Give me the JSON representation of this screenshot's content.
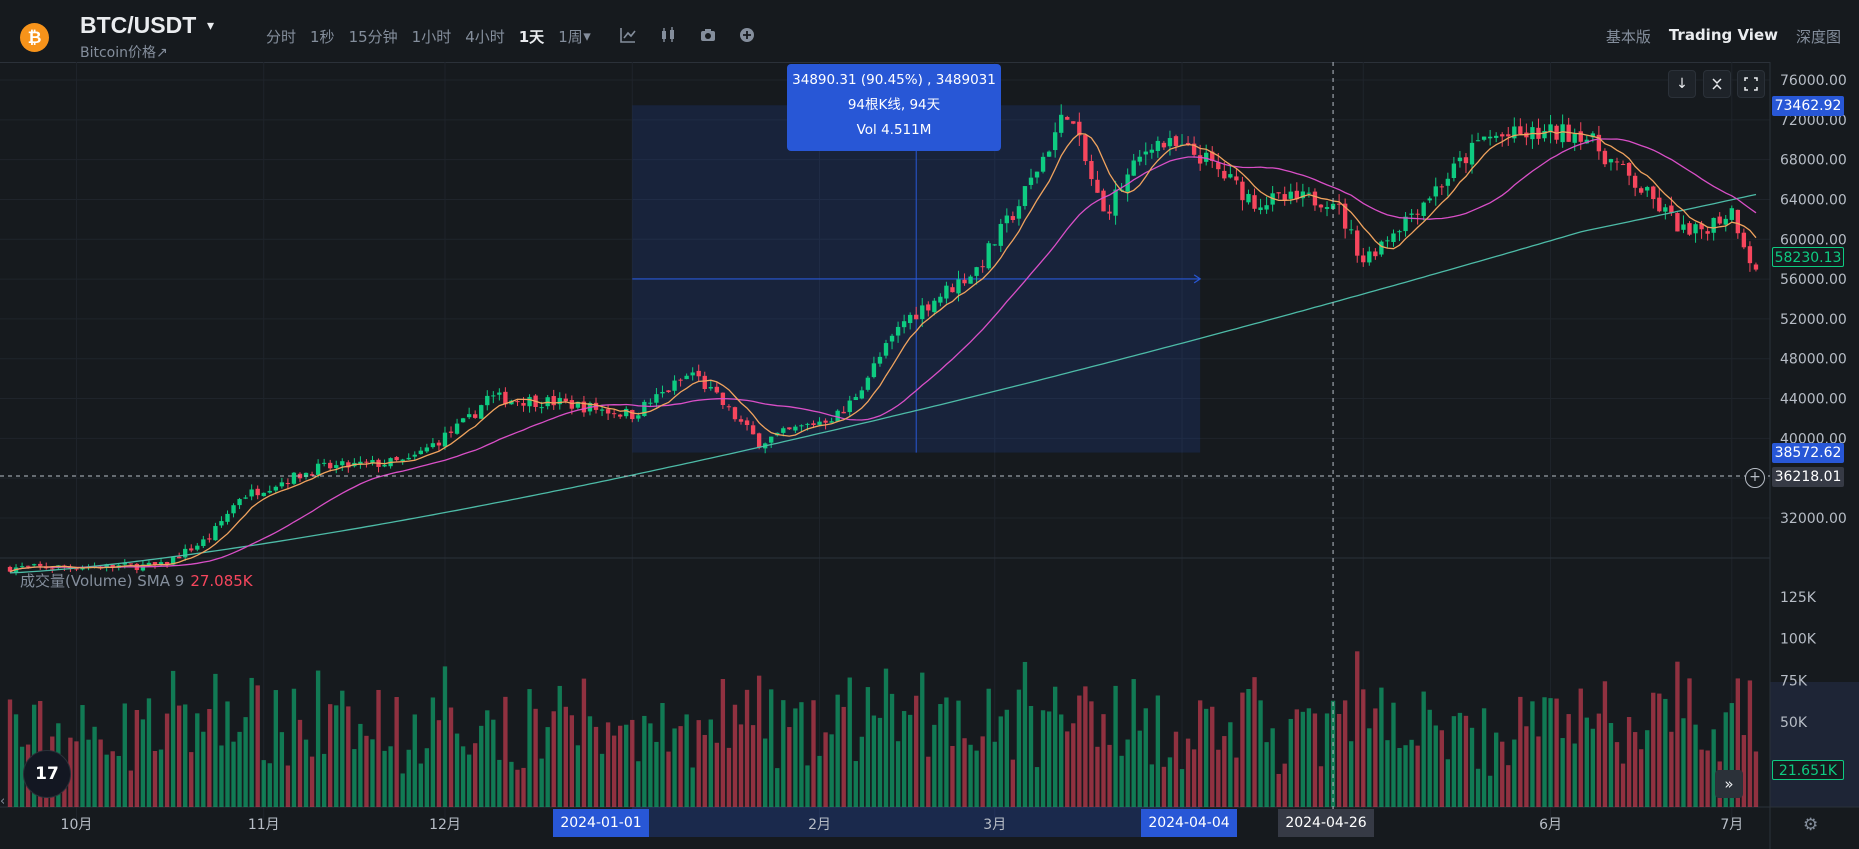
{
  "header": {
    "logo_glyph": "₿",
    "pair": "BTC/USDT",
    "subtitle": "Bitcoin价格↗",
    "intervals": [
      "分时",
      "1秒",
      "15分钟",
      "1小时",
      "4小时",
      "1天",
      "1周"
    ],
    "active_interval": "1天",
    "views": [
      "基本版",
      "Trading View",
      "深度图"
    ],
    "active_view": "Trading View"
  },
  "price_axis": {
    "ticks": [
      "76000.00",
      "72000.00",
      "68000.00",
      "64000.00",
      "60000.00",
      "56000.00",
      "52000.00",
      "48000.00",
      "44000.00",
      "40000.00",
      "32000.00"
    ],
    "tags": {
      "high": "73462.92",
      "last": "58230.13",
      "low": "38572.62",
      "crosshair": "36218.01"
    }
  },
  "volume_axis": {
    "ticks": [
      "125K",
      "100K",
      "75K",
      "50K"
    ],
    "tag": "21.651K"
  },
  "volume_legend": {
    "label": "成交量(Volume) SMA 9",
    "value": "27.085K"
  },
  "measure_tooltip": {
    "line1": "34890.31 (90.45%) , 3489031",
    "line2": "94根K线, 94天",
    "line3": "Vol 4.511M"
  },
  "time_axis": {
    "labels": [
      "10月",
      "11月",
      "12月",
      "2月",
      "3月",
      "6月",
      "7月"
    ],
    "range_start": "2024-01-01",
    "range_end": "2024-04-04",
    "crosshair": "2024-04-26"
  },
  "toolbar_logo": "17",
  "colors": {
    "up": "#0ecb81",
    "down": "#f6465d",
    "accent": "#2857d6",
    "background": "#161a1e",
    "ma_fast": "#f0a35e",
    "ma_mid": "#d94fc7",
    "ma_slow": "#4dbba7"
  },
  "chart_data": {
    "type": "candlestick",
    "xlabel": "",
    "ylabel": "",
    "x_range": [
      "2023-09-20",
      "2024-07-06"
    ],
    "ylim": [
      30000,
      78000
    ],
    "grid": true,
    "close_anchors": [
      {
        "date": "2023-09-20",
        "close": 27000
      },
      {
        "date": "2023-10-15",
        "close": 27200
      },
      {
        "date": "2023-10-23",
        "close": 30000
      },
      {
        "date": "2023-10-28",
        "close": 34100
      },
      {
        "date": "2023-11-10",
        "close": 37000
      },
      {
        "date": "2023-11-25",
        "close": 37700
      },
      {
        "date": "2023-12-05",
        "close": 41900
      },
      {
        "date": "2023-12-08",
        "close": 44100
      },
      {
        "date": "2023-12-20",
        "close": 43600
      },
      {
        "date": "2024-01-01",
        "close": 42400
      },
      {
        "date": "2024-01-11",
        "close": 46600
      },
      {
        "date": "2024-01-22",
        "close": 39600
      },
      {
        "date": "2024-02-05",
        "close": 42600
      },
      {
        "date": "2024-02-15",
        "close": 51800
      },
      {
        "date": "2024-02-27",
        "close": 57000
      },
      {
        "date": "2024-03-05",
        "close": 63500
      },
      {
        "date": "2024-03-13",
        "close": 73000
      },
      {
        "date": "2024-03-19",
        "close": 62500
      },
      {
        "date": "2024-03-27",
        "close": 69900
      },
      {
        "date": "2024-04-04",
        "close": 68400
      },
      {
        "date": "2024-04-13",
        "close": 63800
      },
      {
        "date": "2024-04-26",
        "close": 64100
      },
      {
        "date": "2024-05-01",
        "close": 57900
      },
      {
        "date": "2024-05-15",
        "close": 66300
      },
      {
        "date": "2024-05-21",
        "close": 70200
      },
      {
        "date": "2024-06-06",
        "close": 70800
      },
      {
        "date": "2024-06-24",
        "close": 60300
      },
      {
        "date": "2024-07-01",
        "close": 62900
      },
      {
        "date": "2024-07-05",
        "close": 56600
      }
    ],
    "moving_averages": [
      "MA fast",
      "MA mid",
      "MA slow"
    ],
    "volume_ylim": [
      0,
      140000
    ]
  }
}
